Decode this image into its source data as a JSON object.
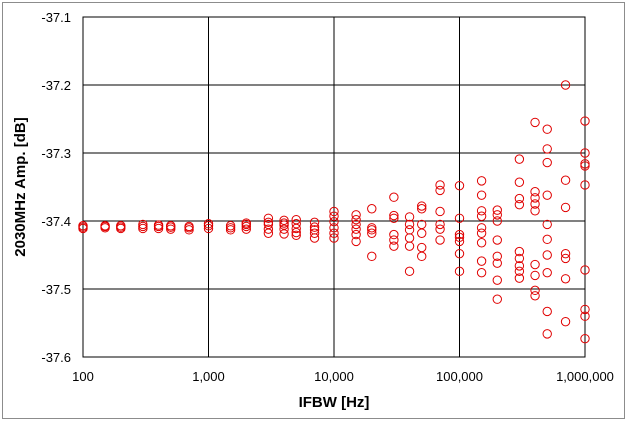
{
  "chart_data": {
    "type": "scatter",
    "xlabel": "IFBW [Hz]",
    "ylabel": "2030MHz Amp. [dB]",
    "x_scale": "log",
    "xlim": [
      100,
      1000000
    ],
    "ylim": [
      -37.6,
      -37.1
    ],
    "x_ticks": [
      100,
      1000,
      10000,
      100000,
      1000000
    ],
    "x_tick_labels": [
      "100",
      "1,000",
      "10,000",
      "100,000",
      "1,000,000"
    ],
    "y_ticks": [
      -37.1,
      -37.2,
      -37.3,
      -37.4,
      -37.5,
      -37.6
    ],
    "y_tick_labels": [
      "-37.1",
      "-37.2",
      "-37.3",
      "-37.4",
      "-37.5",
      "-37.6"
    ],
    "grid": true,
    "marker": "open-circle",
    "marker_color": "#e00000",
    "points": [
      [
        100,
        -37.409
      ],
      [
        100,
        -37.411
      ],
      [
        100,
        -37.407
      ],
      [
        150,
        -37.408
      ],
      [
        150,
        -37.41
      ],
      [
        150,
        -37.407
      ],
      [
        200,
        -37.409
      ],
      [
        200,
        -37.411
      ],
      [
        200,
        -37.407
      ],
      [
        300,
        -37.405
      ],
      [
        300,
        -37.411
      ],
      [
        300,
        -37.408
      ],
      [
        400,
        -37.408
      ],
      [
        400,
        -37.411
      ],
      [
        400,
        -37.406
      ],
      [
        500,
        -37.409
      ],
      [
        500,
        -37.412
      ],
      [
        500,
        -37.407
      ],
      [
        700,
        -37.408
      ],
      [
        700,
        -37.413
      ],
      [
        700,
        -37.41
      ],
      [
        1000,
        -37.404
      ],
      [
        1000,
        -37.411
      ],
      [
        1000,
        -37.407
      ],
      [
        1500,
        -37.407
      ],
      [
        1500,
        -37.413
      ],
      [
        1500,
        -37.41
      ],
      [
        2000,
        -37.405
      ],
      [
        2000,
        -37.412
      ],
      [
        2000,
        -37.408
      ],
      [
        2000,
        -37.403
      ],
      [
        3000,
        -37.396
      ],
      [
        3000,
        -37.405
      ],
      [
        3000,
        -37.412
      ],
      [
        3000,
        -37.418
      ],
      [
        3000,
        -37.402
      ],
      [
        4000,
        -37.399
      ],
      [
        4000,
        -37.406
      ],
      [
        4000,
        -37.412
      ],
      [
        4000,
        -37.419
      ],
      [
        4000,
        -37.403
      ],
      [
        5000,
        -37.398
      ],
      [
        5000,
        -37.404
      ],
      [
        5000,
        -37.411
      ],
      [
        5000,
        -37.417
      ],
      [
        5000,
        -37.421
      ],
      [
        7000,
        -37.402
      ],
      [
        7000,
        -37.409
      ],
      [
        7000,
        -37.418
      ],
      [
        7000,
        -37.425
      ],
      [
        7000,
        -37.413
      ],
      [
        10000,
        -37.386
      ],
      [
        10000,
        -37.393
      ],
      [
        10000,
        -37.401
      ],
      [
        10000,
        -37.41
      ],
      [
        10000,
        -37.418
      ],
      [
        10000,
        -37.425
      ],
      [
        15000,
        -37.391
      ],
      [
        15000,
        -37.398
      ],
      [
        15000,
        -37.405
      ],
      [
        15000,
        -37.412
      ],
      [
        15000,
        -37.42
      ],
      [
        15000,
        -37.43
      ],
      [
        20000,
        -37.382
      ],
      [
        20000,
        -37.41
      ],
      [
        20000,
        -37.413
      ],
      [
        20000,
        -37.418
      ],
      [
        20000,
        -37.452
      ],
      [
        30000,
        -37.365
      ],
      [
        30000,
        -37.392
      ],
      [
        30000,
        -37.396
      ],
      [
        30000,
        -37.42
      ],
      [
        30000,
        -37.428
      ],
      [
        30000,
        -37.437
      ],
      [
        40000,
        -37.394
      ],
      [
        40000,
        -37.405
      ],
      [
        40000,
        -37.413
      ],
      [
        40000,
        -37.425
      ],
      [
        40000,
        -37.437
      ],
      [
        40000,
        -37.474
      ],
      [
        50000,
        -37.378
      ],
      [
        50000,
        -37.382
      ],
      [
        50000,
        -37.405
      ],
      [
        50000,
        -37.418
      ],
      [
        50000,
        -37.439
      ],
      [
        50000,
        -37.452
      ],
      [
        70000,
        -37.347
      ],
      [
        70000,
        -37.355
      ],
      [
        70000,
        -37.386
      ],
      [
        70000,
        -37.405
      ],
      [
        70000,
        -37.412
      ],
      [
        70000,
        -37.428
      ],
      [
        100000,
        -37.348
      ],
      [
        100000,
        -37.396
      ],
      [
        100000,
        -37.42
      ],
      [
        100000,
        -37.424
      ],
      [
        100000,
        -37.43
      ],
      [
        100000,
        -37.448
      ],
      [
        100000,
        -37.474
      ],
      [
        150000,
        -37.341
      ],
      [
        150000,
        -37.362
      ],
      [
        150000,
        -37.385
      ],
      [
        150000,
        -37.393
      ],
      [
        150000,
        -37.41
      ],
      [
        150000,
        -37.418
      ],
      [
        150000,
        -37.432
      ],
      [
        150000,
        -37.459
      ],
      [
        150000,
        -37.476
      ],
      [
        200000,
        -37.384
      ],
      [
        200000,
        -37.391
      ],
      [
        200000,
        -37.4
      ],
      [
        200000,
        -37.428
      ],
      [
        200000,
        -37.452
      ],
      [
        200000,
        -37.462
      ],
      [
        200000,
        -37.487
      ],
      [
        200000,
        -37.515
      ],
      [
        300000,
        -37.309
      ],
      [
        300000,
        -37.343
      ],
      [
        300000,
        -37.367
      ],
      [
        300000,
        -37.376
      ],
      [
        300000,
        -37.445
      ],
      [
        300000,
        -37.455
      ],
      [
        300000,
        -37.466
      ],
      [
        300000,
        -37.474
      ],
      [
        300000,
        -37.484
      ],
      [
        400000,
        -37.255
      ],
      [
        400000,
        -37.357
      ],
      [
        400000,
        -37.366
      ],
      [
        400000,
        -37.375
      ],
      [
        400000,
        -37.385
      ],
      [
        400000,
        -37.464
      ],
      [
        400000,
        -37.48
      ],
      [
        400000,
        -37.502
      ],
      [
        400000,
        -37.51
      ],
      [
        500000,
        -37.265
      ],
      [
        500000,
        -37.294
      ],
      [
        500000,
        -37.314
      ],
      [
        500000,
        -37.362
      ],
      [
        500000,
        -37.405
      ],
      [
        500000,
        -37.427
      ],
      [
        500000,
        -37.45
      ],
      [
        500000,
        -37.476
      ],
      [
        500000,
        -37.533
      ],
      [
        500000,
        -37.566
      ],
      [
        700000,
        -37.2
      ],
      [
        700000,
        -37.34
      ],
      [
        700000,
        -37.38
      ],
      [
        700000,
        -37.448
      ],
      [
        700000,
        -37.455
      ],
      [
        700000,
        -37.485
      ],
      [
        700000,
        -37.548
      ],
      [
        1000000,
        -37.253
      ],
      [
        1000000,
        -37.3
      ],
      [
        1000000,
        -37.316
      ],
      [
        1000000,
        -37.319
      ],
      [
        1000000,
        -37.347
      ],
      [
        1000000,
        -37.472
      ],
      [
        1000000,
        -37.53
      ],
      [
        1000000,
        -37.54
      ],
      [
        1000000,
        -37.573
      ]
    ]
  }
}
